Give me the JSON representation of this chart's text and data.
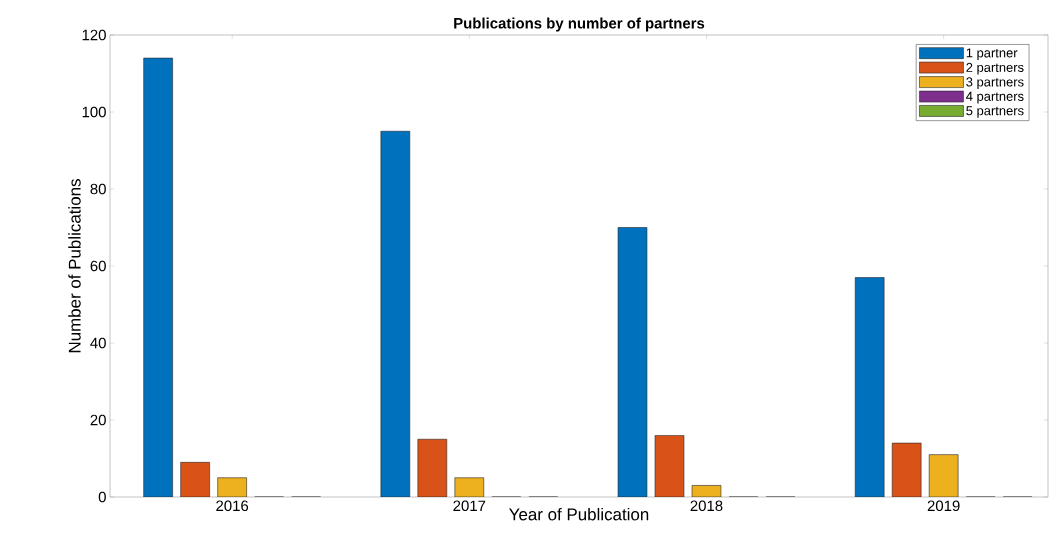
{
  "chart_data": {
    "type": "bar",
    "title": "Publications by number of partners",
    "xlabel": "Year of Publication",
    "ylabel": "Number of Publications",
    "categories": [
      "2016",
      "2017",
      "2018",
      "2019"
    ],
    "series": [
      {
        "name": "1 partner",
        "color": "#0072bd",
        "values": [
          114,
          95,
          70,
          57
        ]
      },
      {
        "name": "2 partners",
        "color": "#d95319",
        "values": [
          9,
          15,
          16,
          14
        ]
      },
      {
        "name": "3 partners",
        "color": "#edb120",
        "values": [
          5,
          5,
          3,
          11
        ]
      },
      {
        "name": "4 partners",
        "color": "#7e2f8e",
        "values": [
          0,
          0,
          0,
          0
        ]
      },
      {
        "name": "5 partners",
        "color": "#77ac30",
        "values": [
          0,
          0,
          0,
          0
        ]
      }
    ],
    "ylim": [
      0,
      120
    ],
    "yticks": [
      0,
      20,
      40,
      60,
      80,
      100,
      120
    ],
    "legend": "top right"
  }
}
